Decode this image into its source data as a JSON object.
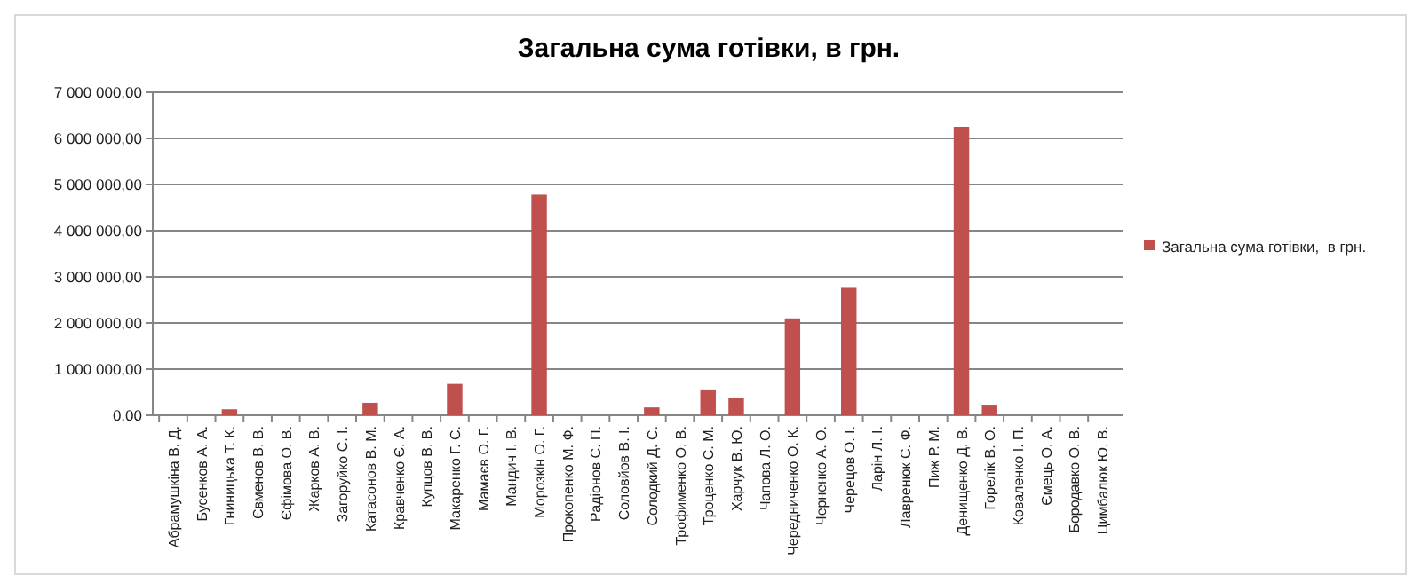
{
  "chart_data": {
    "type": "bar",
    "title": "Загальна сума готівки,  в грн.",
    "categories": [
      "Абрамушкіна В. Д.",
      "Бусенков А. А.",
      "Гниницька Т. К.",
      "Євменов В. В.",
      "Єфімова О. В.",
      "Жарков А. В.",
      "Загоруйко С. І.",
      "Катасонов В. М.",
      "Кравченко Є. А.",
      "Купцов В. В.",
      "Макаренко Г. С.",
      "Мамаєв О. Г.",
      "Мандич І. В.",
      "Морозкін О. Г.",
      "Прокопенко М. Ф.",
      "Радіонов С. П.",
      "Соловйов В. І.",
      "Солодкий Д. С.",
      "Трофименко О. В.",
      "Троценко С. М.",
      "Харчук В. Ю.",
      "Чапова Л. О.",
      "Чередниченко О. К.",
      "Черненко А. О.",
      "Черецов О. І.",
      "Ларін Л. І.",
      "Лавренюк С. Ф.",
      "Пиж Р. М.",
      "Денищенко Д. В.",
      "Горелік В. О.",
      "Коваленко І. П.",
      "Ємець О. А.",
      "Бородавко О. В.",
      "Цимбалюк Ю. В."
    ],
    "series": [
      {
        "name": "Загальна сума готівки,  в грн.",
        "color": "#c0504d",
        "values": [
          0,
          0,
          130000,
          0,
          0,
          0,
          0,
          270000,
          0,
          0,
          680000,
          0,
          0,
          4780000,
          0,
          0,
          0,
          170000,
          0,
          560000,
          370000,
          0,
          2100000,
          0,
          2780000,
          0,
          0,
          0,
          6250000,
          230000,
          0,
          0,
          0,
          0
        ]
      }
    ],
    "ylim": [
      0,
      7000000
    ],
    "yticks": [
      {
        "value": 0,
        "label": "0,00"
      },
      {
        "value": 1000000,
        "label": "1 000 000,00"
      },
      {
        "value": 2000000,
        "label": "2 000 000,00"
      },
      {
        "value": 3000000,
        "label": "3 000 000,00"
      },
      {
        "value": 4000000,
        "label": "4 000 000,00"
      },
      {
        "value": 5000000,
        "label": "5 000 000,00"
      },
      {
        "value": 6000000,
        "label": "6 000 000,00"
      },
      {
        "value": 7000000,
        "label": "7 000 000,00"
      }
    ],
    "grid": "y",
    "legend": "right"
  }
}
